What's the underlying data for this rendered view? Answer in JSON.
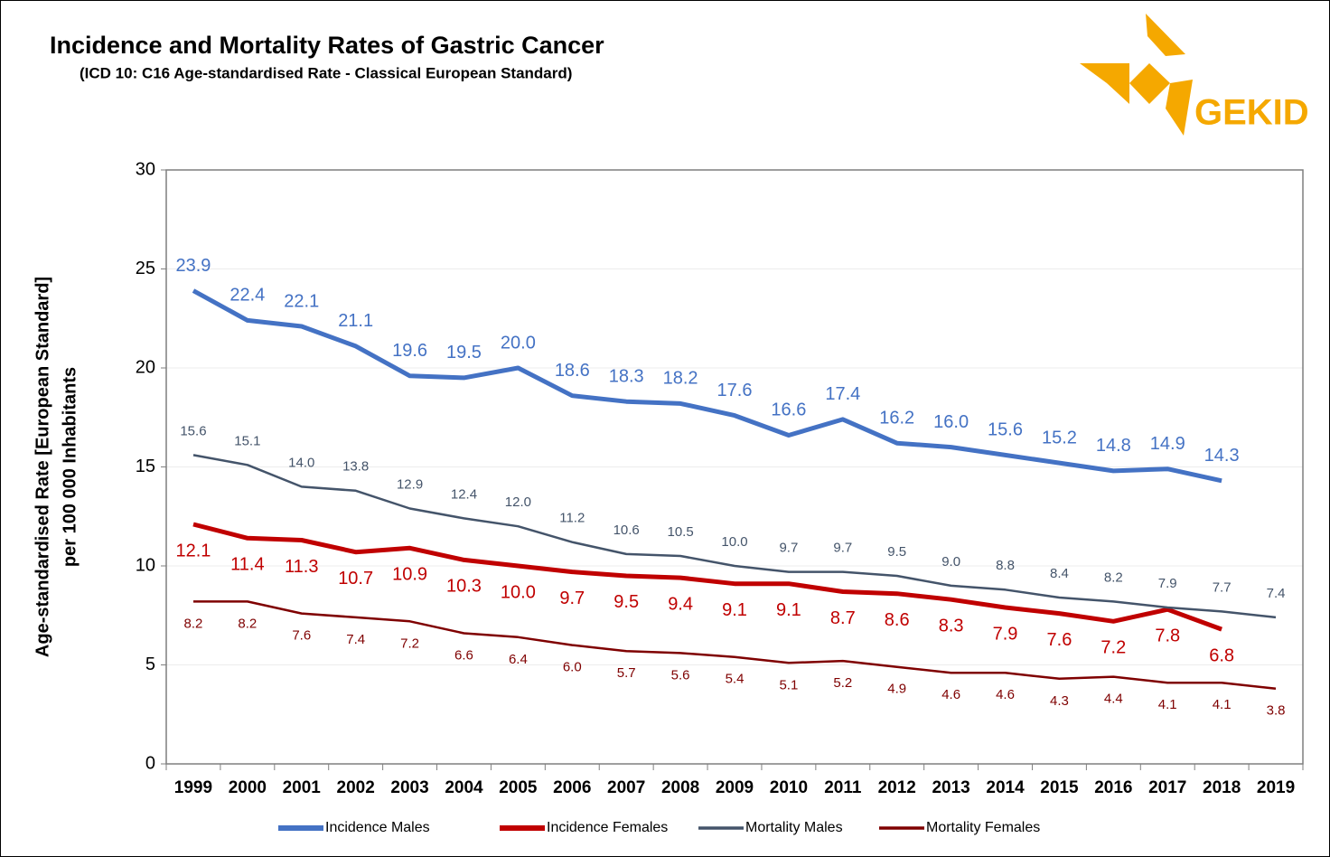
{
  "chart_data": {
    "type": "line",
    "title": "Incidence and Mortality Rates of Gastric Cancer",
    "subtitle": "(ICD 10: C16 Age-standardised Rate - Classical European Standard)",
    "y_label": [
      "Age-standardised Rate [European Standard]",
      "per 100 000 Inhabitants"
    ],
    "categories": [
      "1999",
      "2000",
      "2001",
      "2002",
      "2003",
      "2004",
      "2005",
      "2006",
      "2007",
      "2008",
      "2009",
      "2010",
      "2011",
      "2012",
      "2013",
      "2014",
      "2015",
      "2016",
      "2017",
      "2018",
      "2019"
    ],
    "ylim": [
      0,
      30
    ],
    "yticks": [
      0,
      5,
      10,
      15,
      20,
      25,
      30
    ],
    "grid": true,
    "legend": "bottom",
    "series": [
      {
        "name": "Incidence Males",
        "color": "#4472c4",
        "values": [
          23.9,
          22.4,
          22.1,
          21.1,
          19.6,
          19.5,
          20.0,
          18.6,
          18.3,
          18.2,
          17.6,
          16.6,
          17.4,
          16.2,
          16.0,
          15.6,
          15.2,
          14.8,
          14.9,
          14.3,
          null
        ],
        "value_labels": [
          "23.9",
          "22.4",
          "22.1",
          "21.1",
          "19.6",
          "19.5",
          "20.0",
          "18.6",
          "18.3",
          "18.2",
          "17.6",
          "16.6",
          "17.4",
          "16.2",
          "16.0",
          "15.6",
          "15.2",
          "14.8",
          "14.9",
          "14.3",
          null
        ]
      },
      {
        "name": "Incidence Females",
        "color": "#c00000",
        "values": [
          12.1,
          11.4,
          11.3,
          10.7,
          10.9,
          10.3,
          10.0,
          9.7,
          9.5,
          9.4,
          9.1,
          9.1,
          8.7,
          8.6,
          8.3,
          7.9,
          7.6,
          7.2,
          7.8,
          6.8,
          null
        ],
        "value_labels": [
          "12.1",
          "11.4",
          "11.3",
          "10.7",
          "10.9",
          "10.3",
          "10.0",
          "9.7",
          "9.5",
          "9.4",
          "9.1",
          "9.1",
          "8.7",
          "8.6",
          "8.3",
          "7.9",
          "7.6",
          "7.2",
          "7.8",
          "6.8",
          null
        ]
      },
      {
        "name": "Mortality Males",
        "color": "#44546a",
        "values": [
          15.6,
          15.1,
          14.0,
          13.8,
          12.9,
          12.4,
          12.0,
          11.2,
          10.6,
          10.5,
          10.0,
          9.7,
          9.7,
          9.5,
          9.0,
          8.8,
          8.4,
          8.2,
          7.9,
          7.7,
          7.4
        ],
        "value_labels": [
          "15.6",
          "15.1",
          "14.0",
          "13.8",
          "12.9",
          "12.4",
          "12.0",
          "11.2",
          "10.6",
          "10.5",
          "10.0",
          "9.7",
          "9.7",
          "9.5",
          "9.0",
          "8.8",
          "8.4",
          "8.2",
          "7.9",
          "7.7",
          "7.4"
        ]
      },
      {
        "name": "Mortality Females",
        "color": "#7f0000",
        "values": [
          8.2,
          8.2,
          7.6,
          7.4,
          7.2,
          6.6,
          6.4,
          6.0,
          5.7,
          5.6,
          5.4,
          5.1,
          5.2,
          4.9,
          4.6,
          4.6,
          4.3,
          4.4,
          4.1,
          4.1,
          3.8
        ],
        "value_labels": [
          "8.2",
          "8.2",
          "7.6",
          "7.4",
          "7.2",
          "6.6",
          "6.4",
          "6.0",
          "5.7",
          "5.6",
          "5.4",
          "5.1",
          "5.2",
          "4.9",
          "4.6",
          "4.6",
          "4.3",
          "4.4",
          "4.1",
          "4.1",
          "3.8"
        ]
      }
    ]
  },
  "logo": {
    "text": "GEKID"
  }
}
